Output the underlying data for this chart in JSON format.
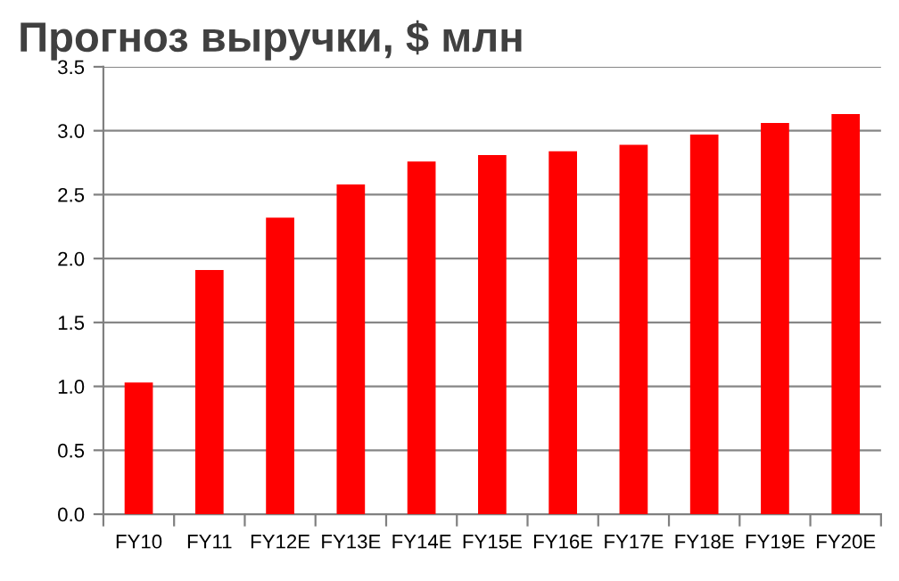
{
  "chart_data": {
    "type": "bar",
    "title": "Прогноз выручки, $ млн",
    "categories": [
      "FY10",
      "FY11",
      "FY12E",
      "FY13E",
      "FY14E",
      "FY15E",
      "FY16E",
      "FY17E",
      "FY18E",
      "FY19E",
      "FY20E"
    ],
    "values": [
      1.03,
      1.91,
      2.32,
      2.58,
      2.76,
      2.81,
      2.84,
      2.89,
      2.97,
      3.06,
      3.13
    ],
    "color": "#ff0000",
    "ylim": [
      0,
      3.5
    ],
    "yticks": [
      {
        "value": 0,
        "label": "0.0"
      },
      {
        "value": 0.5,
        "label": "0.5"
      },
      {
        "value": 1,
        "label": "1.0"
      },
      {
        "value": 1.5,
        "label": "1.5"
      },
      {
        "value": 2,
        "label": "2.0"
      },
      {
        "value": 2.5,
        "label": "2.5"
      },
      {
        "value": 3,
        "label": "3.0"
      },
      {
        "value": 3.5,
        "label": "3.5"
      }
    ],
    "grid": "y"
  }
}
